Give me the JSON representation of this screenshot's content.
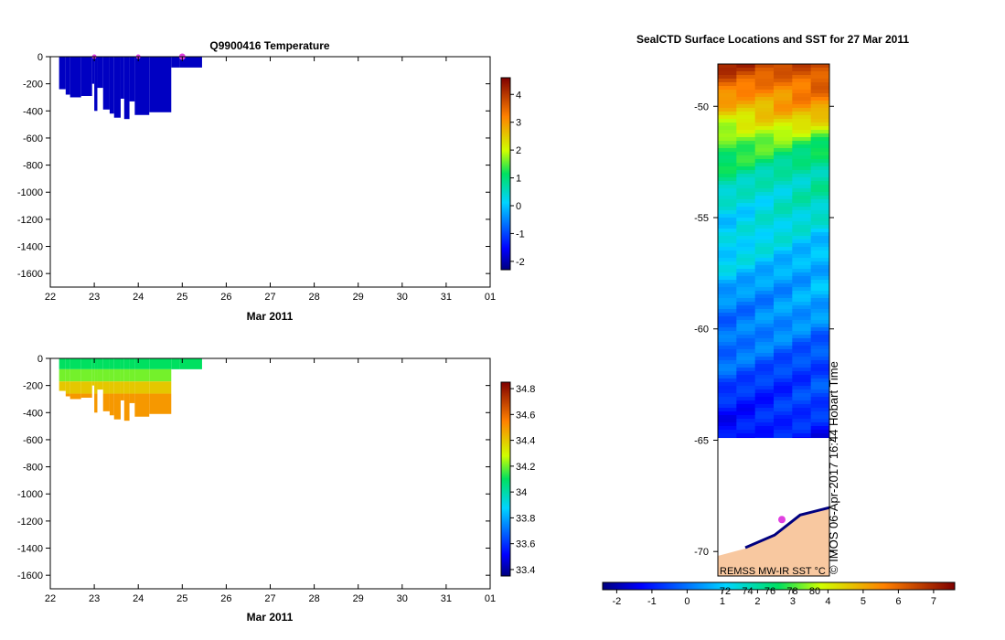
{
  "chart_data": [
    {
      "type": "heatmap",
      "title": "Q9900416  Temperature",
      "xlabel": "Mar 2011",
      "ylabel": "",
      "x_ticks": [
        "22",
        "23",
        "24",
        "25",
        "26",
        "27",
        "28",
        "29",
        "30",
        "31",
        "01"
      ],
      "y_ticks": [
        "0",
        "-200",
        "-400",
        "-600",
        "-800",
        "-1000",
        "-1200",
        "-1400",
        "-1600"
      ],
      "xlim": [
        22,
        32
      ],
      "ylim": [
        -1700,
        0
      ],
      "colorbar": {
        "min": -2.3,
        "max": 4.6,
        "ticks": [
          "-2",
          "-1",
          "0",
          "1",
          "2",
          "3",
          "4"
        ]
      },
      "profiles": [
        {
          "t0": 22.2,
          "t1": 22.35,
          "depth": 240,
          "value": -1.9
        },
        {
          "t0": 22.35,
          "t1": 22.45,
          "depth": 280,
          "value": -1.9
        },
        {
          "t0": 22.45,
          "t1": 22.7,
          "depth": 300,
          "value": -1.9
        },
        {
          "t0": 22.7,
          "t1": 22.95,
          "depth": 290,
          "value": -1.9
        },
        {
          "t0": 22.95,
          "t1": 23.0,
          "depth": 200,
          "value": -1.9
        },
        {
          "t0": 23.0,
          "t1": 23.07,
          "depth": 400,
          "value": -1.9
        },
        {
          "t0": 23.07,
          "t1": 23.2,
          "depth": 230,
          "value": -1.9
        },
        {
          "t0": 23.2,
          "t1": 23.35,
          "depth": 390,
          "value": -1.9
        },
        {
          "t0": 23.35,
          "t1": 23.45,
          "depth": 420,
          "value": -1.9
        },
        {
          "t0": 23.45,
          "t1": 23.6,
          "depth": 450,
          "value": -1.9
        },
        {
          "t0": 23.6,
          "t1": 23.68,
          "depth": 310,
          "value": -1.9
        },
        {
          "t0": 23.68,
          "t1": 23.8,
          "depth": 460,
          "value": -1.9
        },
        {
          "t0": 23.8,
          "t1": 23.92,
          "depth": 330,
          "value": -1.9
        },
        {
          "t0": 23.92,
          "t1": 24.25,
          "depth": 430,
          "value": -1.9
        },
        {
          "t0": 24.25,
          "t1": 24.75,
          "depth": 410,
          "value": -1.9
        },
        {
          "t0": 24.75,
          "t1": 24.95,
          "depth": 80,
          "value": -1.9
        },
        {
          "t0": 24.95,
          "t1": 25.45,
          "depth": 80,
          "value": -1.9
        }
      ],
      "surface_markers": [
        23.0,
        24.0,
        25.0
      ]
    },
    {
      "type": "heatmap",
      "title": "",
      "xlabel": "Mar 2011",
      "ylabel": "",
      "x_ticks": [
        "22",
        "23",
        "24",
        "25",
        "26",
        "27",
        "28",
        "29",
        "30",
        "31",
        "01"
      ],
      "y_ticks": [
        "0",
        "-200",
        "-400",
        "-600",
        "-800",
        "-1000",
        "-1200",
        "-1400",
        "-1600"
      ],
      "xlim": [
        22,
        32
      ],
      "ylim": [
        -1700,
        0
      ],
      "colorbar": {
        "min": 33.35,
        "max": 34.85,
        "ticks": [
          "33.4",
          "33.6",
          "33.8",
          "34",
          "34.2",
          "34.4",
          "34.6",
          "34.8"
        ]
      },
      "profiles": [
        {
          "t0": 22.2,
          "t1": 22.35,
          "depth": 240
        },
        {
          "t0": 22.35,
          "t1": 22.45,
          "depth": 280
        },
        {
          "t0": 22.45,
          "t1": 22.7,
          "depth": 300
        },
        {
          "t0": 22.7,
          "t1": 22.95,
          "depth": 290
        },
        {
          "t0": 22.95,
          "t1": 23.0,
          "depth": 200
        },
        {
          "t0": 23.0,
          "t1": 23.07,
          "depth": 400
        },
        {
          "t0": 23.07,
          "t1": 23.2,
          "depth": 230
        },
        {
          "t0": 23.2,
          "t1": 23.35,
          "depth": 390
        },
        {
          "t0": 23.35,
          "t1": 23.45,
          "depth": 420
        },
        {
          "t0": 23.45,
          "t1": 23.6,
          "depth": 450
        },
        {
          "t0": 23.6,
          "t1": 23.68,
          "depth": 310
        },
        {
          "t0": 23.68,
          "t1": 23.8,
          "depth": 460
        },
        {
          "t0": 23.8,
          "t1": 23.92,
          "depth": 330
        },
        {
          "t0": 23.92,
          "t1": 24.25,
          "depth": 430
        },
        {
          "t0": 24.25,
          "t1": 24.75,
          "depth": 410
        },
        {
          "t0": 24.75,
          "t1": 24.95,
          "depth": 80
        },
        {
          "t0": 24.95,
          "t1": 25.45,
          "depth": 80
        }
      ],
      "layers": [
        {
          "from": 0,
          "to": 80,
          "value": 34.1
        },
        {
          "from": 80,
          "to": 170,
          "value": 34.2
        },
        {
          "from": 170,
          "to": 260,
          "value": 34.4
        },
        {
          "from": 260,
          "to": 500,
          "value": 34.5
        }
      ]
    },
    {
      "type": "heatmap",
      "title": "SealCTD Surface Locations and SST for 27 Mar 2011",
      "ylabel": "",
      "y_ticks": [
        "-50",
        "-55",
        "-60",
        "-65",
        "-70"
      ],
      "ylim": [
        -71.1,
        -48.1
      ],
      "colorbar": {
        "min": -2.4,
        "max": 7.6,
        "ticks": [
          "-2",
          "-1",
          "0",
          "1",
          "2",
          "3",
          "4",
          "5",
          "6",
          "7"
        ],
        "secondary_ticks": [
          "72",
          "74",
          "76",
          "78",
          "80"
        ]
      },
      "sst_latitude_profile": [
        {
          "lat": -48.3,
          "value": 6.5
        },
        {
          "lat": -50.0,
          "value": 5.0
        },
        {
          "lat": -51.5,
          "value": 3.0
        },
        {
          "lat": -53.0,
          "value": 2.0
        },
        {
          "lat": -55.0,
          "value": 1.3
        },
        {
          "lat": -57.0,
          "value": 0.9
        },
        {
          "lat": -59.0,
          "value": 0.3
        },
        {
          "lat": -61.0,
          "value": -0.2
        },
        {
          "lat": -63.0,
          "value": -0.7
        },
        {
          "lat": -64.8,
          "value": -1.2
        }
      ],
      "ice_edge_lat": -64.9,
      "credit": "REMSS MW-IR SST °C",
      "watermark": "© IMOS 06-Apr-2017 16:44 Hobart Time"
    }
  ],
  "colors": {
    "land": "#f8c8a0",
    "ice": "#ffffff",
    "marker": "#e040e0"
  }
}
